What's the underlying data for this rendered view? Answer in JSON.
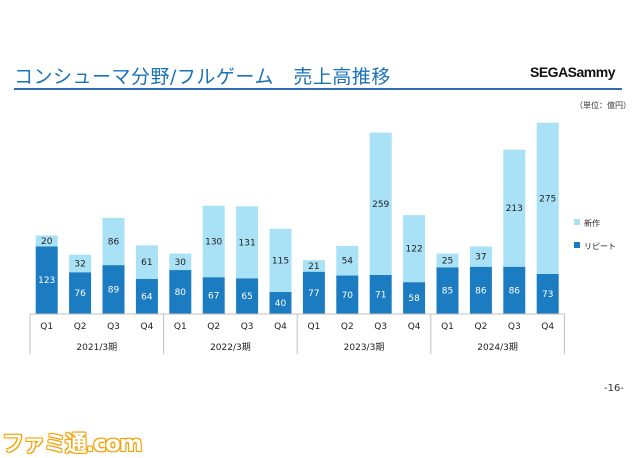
{
  "page": {
    "title": "コンシューマ分野/フルゲーム　売上高推移",
    "logo_text": "SEGASammy",
    "unit_note": "（単位：億円）",
    "page_number": "-16-",
    "watermark": "ファミ通.com"
  },
  "colors": {
    "repeat": "#1b7cc1",
    "new": "#a9e2f7",
    "title": "#1a73b8",
    "rule": "#2f6db3"
  },
  "chart_data": {
    "type": "bar",
    "stacked": true,
    "categories": [
      "Q1",
      "Q2",
      "Q3",
      "Q4",
      "Q1",
      "Q2",
      "Q3",
      "Q4",
      "Q1",
      "Q2",
      "Q3",
      "Q4",
      "Q1",
      "Q2",
      "Q3",
      "Q4"
    ],
    "groups": [
      {
        "label": "2021/3期",
        "start": 0,
        "end": 3
      },
      {
        "label": "2022/3期",
        "start": 4,
        "end": 7
      },
      {
        "label": "2023/3期",
        "start": 8,
        "end": 11
      },
      {
        "label": "2024/3期",
        "start": 12,
        "end": 15
      }
    ],
    "series": [
      {
        "name": "リピート",
        "values": [
          123,
          76,
          89,
          64,
          80,
          67,
          65,
          40,
          77,
          70,
          71,
          58,
          85,
          86,
          86,
          73
        ]
      },
      {
        "name": "新作",
        "values": [
          20,
          32,
          86,
          61,
          30,
          130,
          131,
          115,
          21,
          54,
          259,
          122,
          25,
          37,
          213,
          275
        ]
      }
    ],
    "legend_position": "right",
    "grid": false,
    "ylim": [
      0,
      360
    ]
  }
}
